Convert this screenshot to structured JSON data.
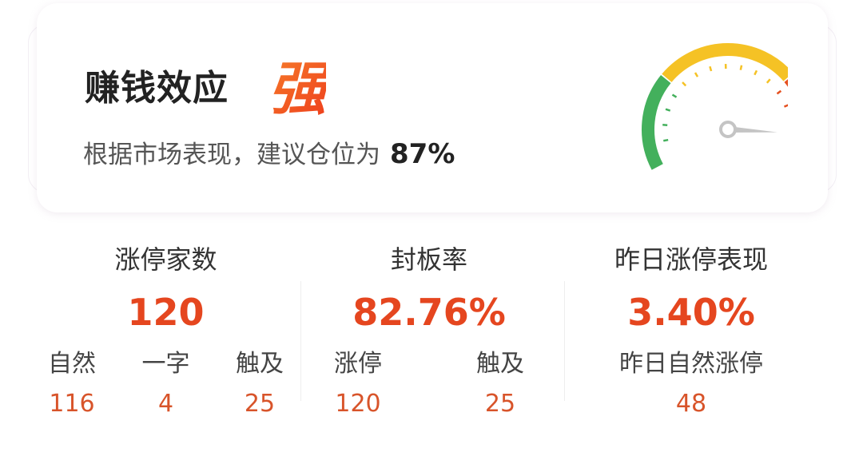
{
  "header": {
    "title": "赚钱效应",
    "strength": "强",
    "advice_prefix": "根据市场表现，建议仓位为",
    "advice_value": "87%"
  },
  "gauge": {
    "value_percent": 87,
    "colors": {
      "green": "#43b05c",
      "yellow": "#f5c225",
      "red": "#e5501f",
      "grey": "#e5e5e5",
      "needle": "#c4c4c4"
    }
  },
  "stats": [
    {
      "label": "涨停家数",
      "value": "120",
      "sub": [
        {
          "label": "自然",
          "value": "116"
        },
        {
          "label": "一字",
          "value": "4"
        },
        {
          "label": "触及",
          "value": "25"
        }
      ]
    },
    {
      "label": "封板率",
      "value": "82.76%",
      "sub": [
        {
          "label": "涨停",
          "value": "120"
        },
        {
          "label": "触及",
          "value": "25"
        }
      ]
    },
    {
      "label": "昨日涨停表现",
      "value": "3.40%",
      "sub": [
        {
          "label": "昨日自然涨停",
          "value": "48"
        }
      ]
    }
  ],
  "accent": "#e5461f"
}
